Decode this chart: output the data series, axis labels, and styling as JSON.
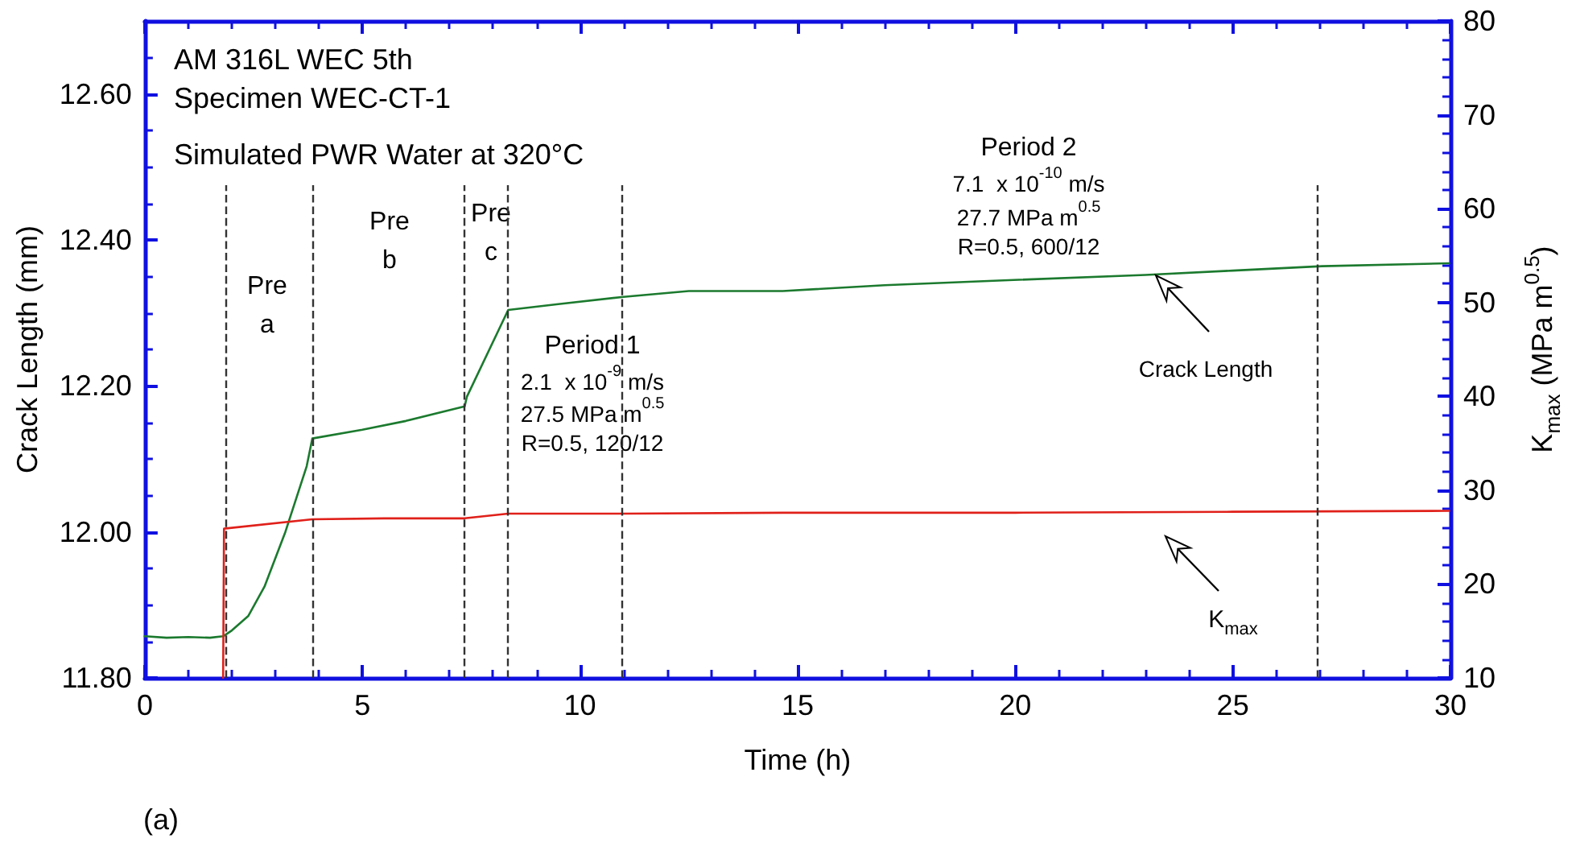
{
  "chart_data": {
    "type": "line",
    "title": "(a)",
    "xlabel": "Time (h)",
    "ylabel": "Crack Length (mm)",
    "y2label": "K$_{max}$ (MPa m$^{0.5}$)",
    "xlim": [
      0,
      30
    ],
    "xticks": [
      0,
      5,
      10,
      15,
      20,
      25,
      30
    ],
    "ylim": [
      11.8,
      12.7
    ],
    "yticks": [
      {
        "value": 11.8,
        "label": "11.80"
      },
      {
        "value": 12.0,
        "label": "12.00"
      },
      {
        "value": 12.2,
        "label": "12.20"
      },
      {
        "value": 12.4,
        "label": "12.40"
      },
      {
        "value": 12.6,
        "label": "12.60"
      }
    ],
    "y2lim": [
      10,
      80
    ],
    "y2ticks": [
      10,
      20,
      30,
      40,
      50,
      60,
      70,
      80
    ],
    "grid": false,
    "legend": false,
    "marker": "none",
    "line_style": "solid",
    "series": [
      {
        "color": "#1b7a2e",
        "x": [
          0,
          0.5,
          1.0,
          1.5,
          1.8,
          2.0,
          2.38,
          2.75,
          3.23,
          3.72,
          3.85,
          5.0,
          6.0,
          7.35,
          7.4,
          8.35,
          9.5,
          11.0,
          12.5,
          14.66,
          17.0,
          19.5,
          22.99,
          25.0,
          27.05,
          29.97
        ],
        "values": [
          11.857,
          11.855,
          11.856,
          11.855,
          11.857,
          11.865,
          11.885,
          11.925,
          12.0,
          12.09,
          12.128,
          12.14,
          12.152,
          12.172,
          12.185,
          12.304,
          12.312,
          12.322,
          12.33,
          12.33,
          12.338,
          12.344,
          12.352,
          12.358,
          12.364,
          12.368
        ]
      },
      {
        "color": "#e0201a",
        "axis": "y2",
        "x": [
          1.8,
          1.82,
          3.85,
          5.5,
          7.35,
          8.35,
          11.0,
          14.66,
          20.0,
          25.0,
          29.97
        ],
        "values": [
          10,
          25.9,
          26.9,
          27.0,
          27.0,
          27.5,
          27.5,
          27.6,
          27.6,
          27.7,
          27.8
        ]
      }
    ],
    "ref_lines": [
      {
        "axis": "x",
        "value": 1.85,
        "color": "#333333",
        "line_style": "dashed"
      },
      {
        "axis": "x",
        "value": 3.85,
        "color": "#333333",
        "line_style": "dashed"
      },
      {
        "axis": "x",
        "value": 7.35,
        "color": "#333333",
        "line_style": "dashed"
      },
      {
        "axis": "x",
        "value": 8.35,
        "color": "#333333",
        "line_style": "dashed"
      },
      {
        "axis": "x",
        "value": 10.95,
        "color": "#333333",
        "line_style": "dashed"
      },
      {
        "axis": "x",
        "value": 26.95,
        "color": "#333333",
        "line_style": "dashed"
      }
    ],
    "annotations": [
      "AM 316L WEC 5th",
      "Specimen WEC-CT-1",
      "Simulated PWR Water at 320°C",
      "Pre\na",
      "Pre\nb",
      "Pre\nc",
      "Period 1",
      "2.1  x 10$^{-9}$ m/s",
      "27.5 MPa m$^{0.5}$",
      "R=0.5, 120/12",
      "Period 2",
      "7.1  x 10$^{-10}$ m/s",
      "27.7 MPa m$^{0.5}$",
      "R=0.5, 600/12",
      "Crack Length",
      "K$_{max}$"
    ]
  }
}
